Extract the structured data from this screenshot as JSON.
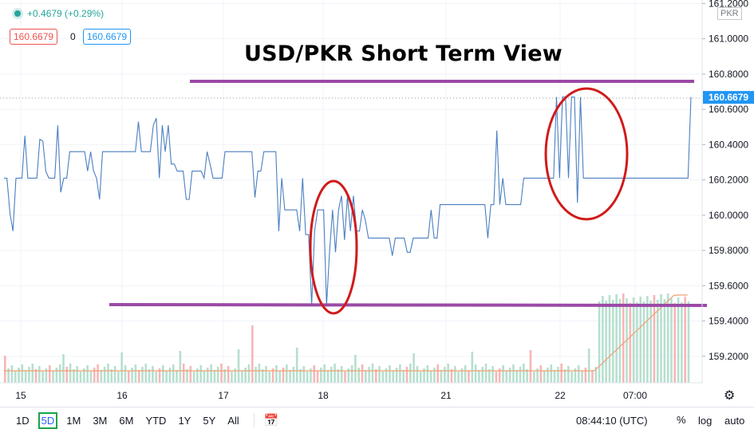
{
  "legend": {
    "change": "+0.4679 (+0.29%)",
    "bid": "160.6679",
    "spread": "0",
    "ask": "160.6679"
  },
  "title": "USD/PKR Short Term View",
  "scale_unit": "PKR",
  "current_price_label": "160.6679",
  "colors": {
    "line": "#4a7fc1",
    "price_tag": "#2196f3",
    "annotation": "#9b4aa6",
    "circle": "#d11a1a",
    "volume_up": "#b7dfcf",
    "volume_down": "#f7b6b6",
    "ma": "#f0a070"
  },
  "timeframes": [
    "1D",
    "5D",
    "1M",
    "3M",
    "6M",
    "YTD",
    "1Y",
    "5Y",
    "All"
  ],
  "active_timeframe": "5D",
  "calendar_icon": "calendar-range-icon",
  "settings_icon": "gear-icon",
  "clock": "08:44:10 (UTC)",
  "scale_buttons": {
    "percent": "%",
    "log": "log",
    "auto": "auto"
  },
  "chart_data": {
    "type": "line",
    "title": "USD/PKR Short Term View",
    "x_labels": [
      "15",
      "16",
      "17",
      "18",
      "21",
      "22",
      "07:00"
    ],
    "y_ticks": [
      "161.2000",
      "161.0000",
      "160.8000",
      "160.6000",
      "160.4000",
      "160.2000",
      "160.0000",
      "159.8000",
      "159.6000",
      "159.4000",
      "159.2000"
    ],
    "ylim": [
      159.05,
      161.22
    ],
    "y_axis_position": "right",
    "series": [
      {
        "values": [
          160.21,
          160.21,
          160.01,
          159.91,
          160.21,
          160.21,
          160.21,
          160.45,
          160.21,
          160.21,
          160.21,
          160.21,
          160.43,
          160.42,
          160.25,
          160.21,
          160.21,
          160.21,
          160.51,
          160.13,
          160.21,
          160.21,
          160.36,
          160.36,
          160.36,
          160.36,
          160.36,
          160.36,
          160.25,
          160.36,
          160.25,
          160.21,
          160.09,
          160.36,
          160.36,
          160.36,
          160.36,
          160.36,
          160.36,
          160.36,
          160.36,
          160.36,
          160.36,
          160.36,
          160.36,
          160.53,
          160.36,
          160.36,
          160.36,
          160.36,
          160.51,
          160.55,
          160.21,
          160.51,
          160.36,
          160.51,
          160.29,
          160.29,
          160.25,
          160.25,
          160.25,
          160.09,
          160.09,
          160.25,
          160.25,
          160.25,
          160.25,
          160.21,
          160.36,
          160.29,
          160.21,
          160.21,
          160.21,
          160.21,
          160.36,
          160.36,
          160.36,
          160.36,
          160.36,
          160.36,
          160.36,
          160.36,
          160.36,
          160.36,
          160.1,
          160.25,
          160.25,
          160.36,
          160.36,
          160.36,
          160.36,
          160.36,
          159.91,
          160.21,
          160.03,
          160.03,
          160.03,
          160.03,
          160.03,
          159.91,
          160.21,
          159.89,
          159.89,
          159.49,
          159.91,
          160.03,
          160.03,
          160.03,
          159.49,
          159.79,
          160.03,
          159.79,
          160.03,
          160.11,
          159.86,
          160.11,
          159.91,
          160.11,
          159.91,
          159.91,
          160.03,
          159.97,
          159.87,
          159.87,
          159.87,
          159.87,
          159.87,
          159.87,
          159.87,
          159.87,
          159.77,
          159.87,
          159.87,
          159.87,
          159.87,
          159.79,
          159.79,
          159.87,
          159.87,
          159.87,
          159.87,
          159.87,
          159.87,
          160.03,
          159.87,
          159.87,
          160.06,
          160.06,
          160.06,
          160.06,
          160.06,
          160.06,
          160.06,
          160.06,
          160.06,
          160.06,
          160.06,
          160.06,
          160.06,
          160.06,
          160.06,
          160.06,
          159.87,
          160.06,
          160.06,
          160.48,
          160.06,
          160.21,
          160.06,
          160.06,
          160.06,
          160.06,
          160.06,
          160.06,
          160.21,
          160.21,
          160.21,
          160.21,
          160.21,
          160.21,
          160.21,
          160.21,
          160.21,
          160.21,
          160.21,
          160.67,
          160.21,
          160.67,
          160.67,
          160.21,
          160.67,
          160.67,
          160.07,
          160.67,
          160.21,
          160.21,
          160.21,
          160.21,
          160.21,
          160.21,
          160.21,
          160.21,
          160.21,
          160.21,
          160.21,
          160.21,
          160.21,
          160.21,
          160.21,
          160.21,
          160.21,
          160.21,
          160.21,
          160.21,
          160.21,
          160.21,
          160.21,
          160.21,
          160.21,
          160.21,
          160.21,
          160.21,
          160.21,
          160.21,
          160.21,
          160.21,
          160.21,
          160.21,
          160.21,
          160.21,
          160.67
        ]
      }
    ],
    "current_price": 160.6679,
    "annotations": {
      "resistance_level": 160.78,
      "support_level": 159.49
    }
  }
}
